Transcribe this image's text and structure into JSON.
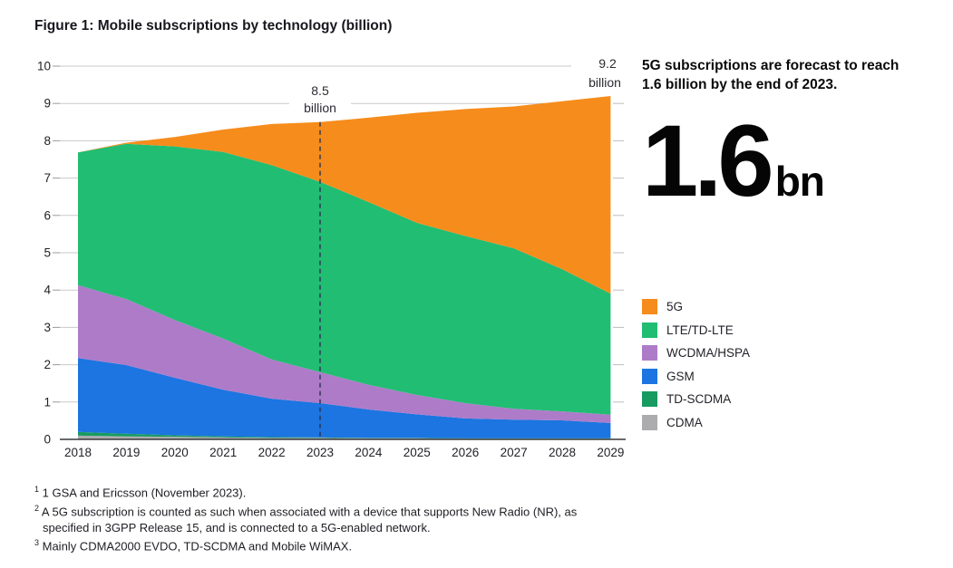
{
  "title": "Figure 1: Mobile subscriptions by technology (billion)",
  "callout": {
    "headline_line1": "5G subscriptions are forecast to reach",
    "headline_line2": "1.6 billion by the end of 2023.",
    "big_value": "1.6",
    "big_unit": "bn"
  },
  "legend": {
    "items": [
      {
        "label": "5G",
        "color": "#F68C1C"
      },
      {
        "label": "LTE/TD-LTE",
        "color": "#21BD72"
      },
      {
        "label": "WCDMA/HSPA",
        "color": "#AE7BC9"
      },
      {
        "label": "GSM",
        "color": "#1C75E0"
      },
      {
        "label": "TD-SCDMA",
        "color": "#189B61"
      },
      {
        "label": "CDMA",
        "color": "#ACACAE"
      }
    ]
  },
  "footnotes": [
    {
      "marker": "1",
      "text": "1 GSA and Ericsson (November 2023)."
    },
    {
      "marker": "2",
      "text": "A 5G subscription is counted as such when associated with a device that supports New Radio (NR), as specified in 3GPP Release 15, and is connected to a 5G-enabled network."
    },
    {
      "marker": "3",
      "text": "Mainly CDMA2000 EVDO, TD-SCDMA and Mobile WiMAX."
    }
  ],
  "chart_data": {
    "type": "area",
    "stacked": true,
    "title": "Mobile subscriptions by technology (billion)",
    "xlabel": "",
    "ylabel": "",
    "x": [
      2018,
      2019,
      2020,
      2021,
      2022,
      2023,
      2024,
      2025,
      2026,
      2027,
      2028,
      2029
    ],
    "ylim": [
      0,
      10
    ],
    "yticks": [
      0,
      1,
      2,
      3,
      4,
      5,
      6,
      7,
      8,
      9,
      10
    ],
    "grid": "horizontal",
    "legend_position": "right",
    "series": [
      {
        "name": "CDMA",
        "color": "#ACACAE",
        "values": [
          0.1,
          0.08,
          0.07,
          0.05,
          0.04,
          0.04,
          0.03,
          0.03,
          0.02,
          0.02,
          0.02,
          0.02
        ]
      },
      {
        "name": "TD-SCDMA",
        "color": "#189B61",
        "values": [
          0.1,
          0.07,
          0.04,
          0.03,
          0.02,
          0.01,
          0.01,
          0.01,
          0.01,
          0.01,
          0.01,
          0.01
        ]
      },
      {
        "name": "GSM",
        "color": "#1C75E0",
        "values": [
          1.98,
          1.84,
          1.54,
          1.25,
          1.03,
          0.92,
          0.76,
          0.63,
          0.53,
          0.5,
          0.48,
          0.41
        ]
      },
      {
        "name": "WCDMA/HSPA",
        "color": "#AE7BC9",
        "values": [
          1.95,
          1.77,
          1.55,
          1.37,
          1.05,
          0.83,
          0.66,
          0.52,
          0.41,
          0.29,
          0.24,
          0.22
        ]
      },
      {
        "name": "LTE/TD-LTE",
        "color": "#21BD72",
        "values": [
          3.56,
          4.16,
          4.65,
          5.0,
          5.21,
          5.1,
          4.9,
          4.61,
          4.48,
          4.3,
          3.81,
          3.24
        ]
      },
      {
        "name": "5G",
        "color": "#F68C1C",
        "values": [
          0.0,
          0.03,
          0.25,
          0.6,
          1.1,
          1.6,
          2.26,
          2.95,
          3.4,
          3.8,
          4.5,
          5.3
        ]
      }
    ],
    "annotations": [
      {
        "x": 2023,
        "lines": [
          "8.5",
          "billion"
        ],
        "dashed_line": true,
        "top_value": 8.5
      },
      {
        "x": 2029,
        "lines": [
          "9.2",
          "billion"
        ],
        "dashed_line": false,
        "top_value": 9.2
      }
    ]
  }
}
